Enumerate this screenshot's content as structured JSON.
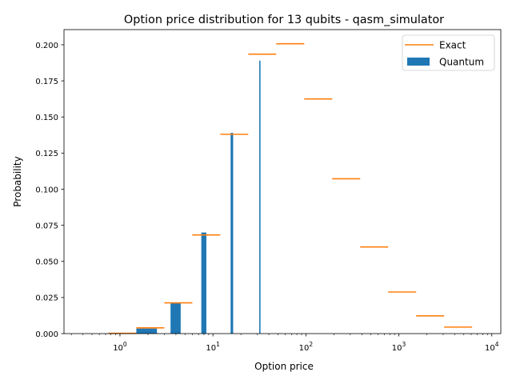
{
  "chart_data": {
    "type": "bar",
    "title": "Option price distribution for 13 qubits - qasm_simulator",
    "xlabel": "Option price",
    "ylabel": "Probability",
    "xscale": "log",
    "xlim": [
      0.25,
      12500
    ],
    "ylim": [
      0.0,
      0.2105
    ],
    "grid": false,
    "legend_position": "top-right",
    "x_tick_labels": [
      {
        "value": 1,
        "label": "10",
        "exp": "0"
      },
      {
        "value": 10,
        "label": "10",
        "exp": "1"
      },
      {
        "value": 100,
        "label": "10",
        "exp": "2"
      },
      {
        "value": 1000,
        "label": "10",
        "exp": "3"
      },
      {
        "value": 10000,
        "label": "10",
        "exp": "4"
      }
    ],
    "y_tick_labels": [
      "0.000",
      "0.025",
      "0.050",
      "0.075",
      "0.100",
      "0.125",
      "0.150",
      "0.175",
      "0.200"
    ],
    "y_ticks": [
      0,
      0.025,
      0.05,
      0.075,
      0.1,
      0.125,
      0.15,
      0.175,
      0.2
    ],
    "series": [
      {
        "name": "Quantum",
        "kind": "bar",
        "color": "#1f77b4",
        "x": [
          1,
          2,
          4,
          8,
          16,
          32,
          64,
          128,
          256,
          512,
          1024,
          2048,
          4096
        ],
        "values": [
          0.0,
          0.0035,
          0.021,
          0.07,
          0.139,
          0.189,
          0.0,
          0.0,
          0.0,
          0.0,
          0.0,
          0.0,
          0.0
        ],
        "width": 1
      },
      {
        "name": "Exact",
        "kind": "segment",
        "color": "#ff7f0e",
        "x": [
          1,
          2,
          4,
          8,
          16,
          32,
          64,
          128,
          256,
          512,
          1024,
          2048,
          4096
        ],
        "values": [
          0.0002,
          0.004,
          0.0213,
          0.0683,
          0.138,
          0.1935,
          0.2007,
          0.1625,
          0.1072,
          0.06,
          0.0288,
          0.0123,
          0.0045
        ]
      }
    ]
  }
}
